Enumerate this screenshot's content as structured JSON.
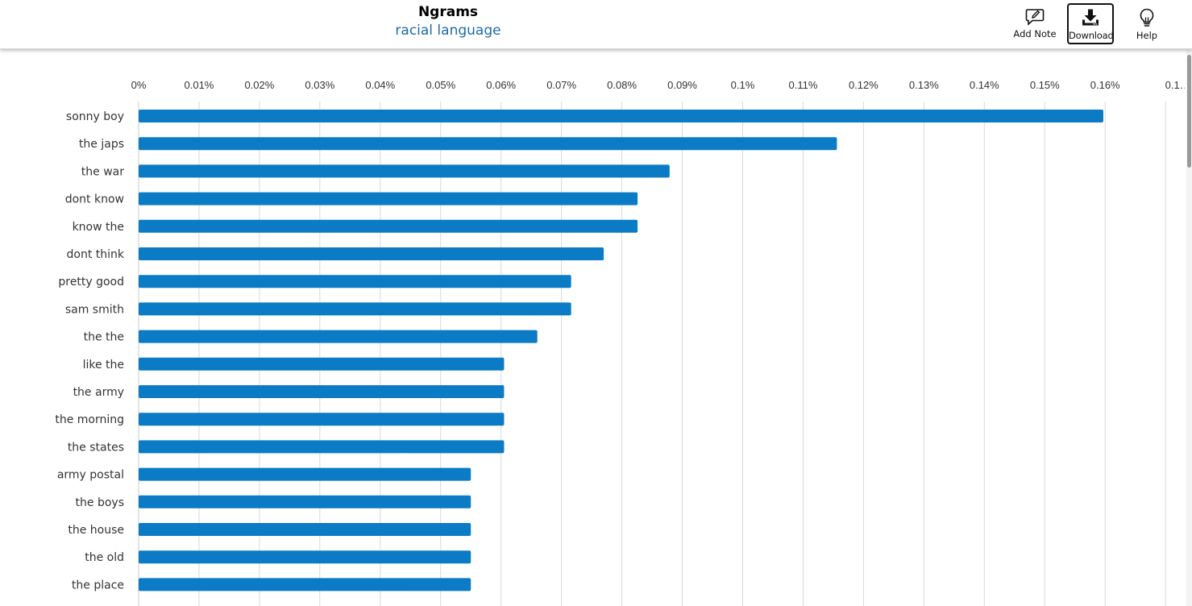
{
  "header": {
    "title": "Ngrams",
    "subtitle": "racial language"
  },
  "toolbar": {
    "add_note_label": "Add Note",
    "download_label": "Download",
    "help_label": "Help",
    "icons": {
      "add_note": "pencil-note-icon",
      "download": "download-icon",
      "help": "lightbulb-icon"
    }
  },
  "chart_data": {
    "type": "bar",
    "orientation": "horizontal",
    "categories": [
      "sonny boy",
      "the japs",
      "the war",
      "dont know",
      "know the",
      "dont think",
      "pretty good",
      "sam smith",
      "the the",
      "like the",
      "the army",
      "the morning",
      "the states",
      "army postal",
      "the boys",
      "the house",
      "the old",
      "the place"
    ],
    "values": [
      0.1597,
      0.1156,
      0.0879,
      0.0826,
      0.0826,
      0.077,
      0.0716,
      0.0716,
      0.066,
      0.0605,
      0.0605,
      0.0605,
      0.0605,
      0.055,
      0.055,
      0.055,
      0.055,
      0.055
    ],
    "xlim": [
      0,
      0.17
    ],
    "tick_labels": [
      "0%",
      "0.01%",
      "0.02%",
      "0.03%",
      "0.04%",
      "0.05%",
      "0.06%",
      "0.07%",
      "0.08%",
      "0.09%",
      "0.1%",
      "0.11%",
      "0.12%",
      "0.13%",
      "0.14%",
      "0.15%",
      "0.16%",
      "0.1…"
    ],
    "axis_position": "top",
    "grid": true,
    "bar_color": "#0a7bc4",
    "grid_color": "#d9d9d9"
  }
}
